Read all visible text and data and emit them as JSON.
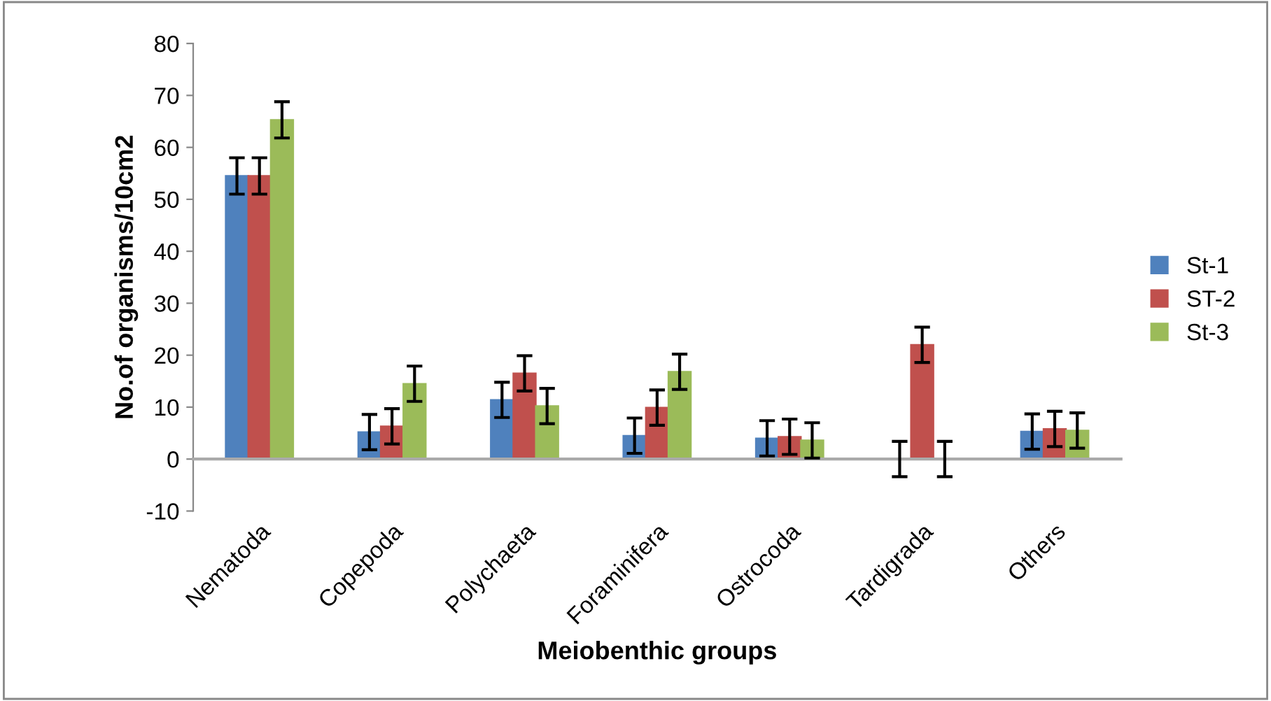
{
  "chart_data": {
    "type": "bar",
    "xlabel": "Meiobenthic groups",
    "ylabel": "No.of organisms/10cm2",
    "categories": [
      "Nematoda",
      "Copepoda",
      "Polychaeta",
      "Foraminifera",
      "Ostrocoda",
      "Tardigrada",
      "Others"
    ],
    "series": [
      {
        "name": "St-1",
        "color": "#4f81bd",
        "values": [
          54.5,
          5.2,
          11.4,
          4.5,
          4.0,
          0,
          5.3
        ],
        "errors": [
          3.5,
          3.4,
          3.4,
          3.4,
          3.4,
          3.4,
          3.4
        ]
      },
      {
        "name": "ST-2",
        "color": "#c0504d",
        "values": [
          54.5,
          6.3,
          16.5,
          9.9,
          4.3,
          22.0,
          5.8
        ],
        "errors": [
          3.5,
          3.4,
          3.4,
          3.4,
          3.4,
          3.4,
          3.4
        ]
      },
      {
        "name": "St-3",
        "color": "#9bbb59",
        "values": [
          65.3,
          14.5,
          10.2,
          16.8,
          3.6,
          0,
          5.5
        ],
        "errors": [
          3.5,
          3.4,
          3.4,
          3.4,
          3.4,
          3.4,
          3.4
        ]
      }
    ],
    "ylim": [
      -10,
      80
    ],
    "yticks": [
      -10,
      0,
      10,
      20,
      30,
      40,
      50,
      60,
      70,
      80
    ],
    "legend": "right"
  }
}
